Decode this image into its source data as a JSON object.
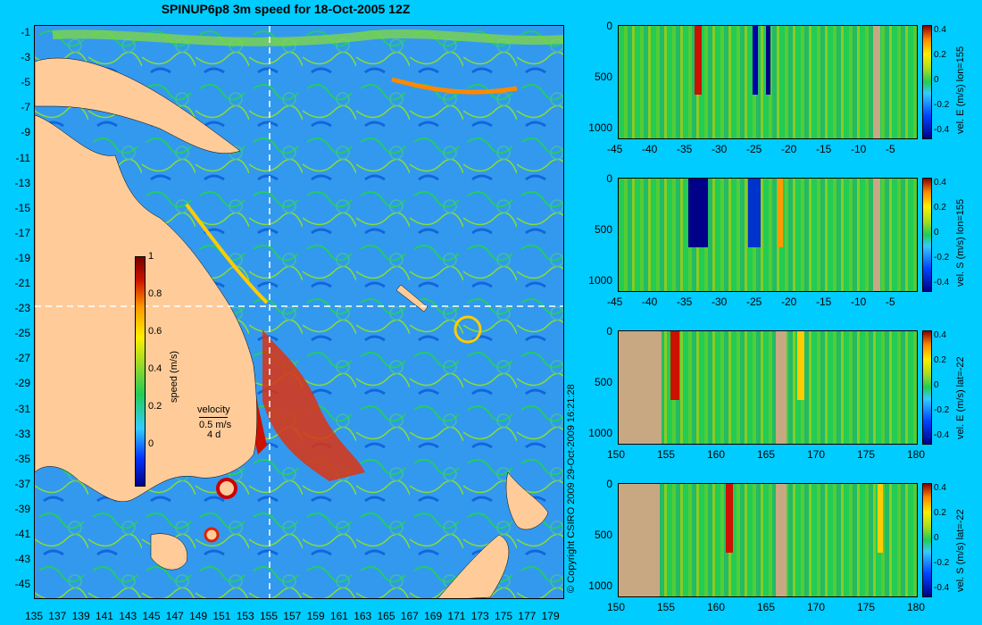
{
  "title": "SPINUP6p8 3m speed for 18-Oct-2005 12Z",
  "copyright": "© Copyright CSIRO 2009   29-Oct-2009 16:21:28",
  "map": {
    "lat_ticks": [
      "-1",
      "-3",
      "-5",
      "-7",
      "-9",
      "-11",
      "-13",
      "-15",
      "-17",
      "-19",
      "-21",
      "-23",
      "-25",
      "-27",
      "-29",
      "-31",
      "-33",
      "-35",
      "-37",
      "-39",
      "-41",
      "-43",
      "-45"
    ],
    "lon_ticks": [
      "135",
      "137",
      "139",
      "141",
      "143",
      "145",
      "147",
      "149",
      "151",
      "153",
      "155",
      "157",
      "159",
      "161",
      "163",
      "165",
      "167",
      "169",
      "171",
      "173",
      "175",
      "177",
      "179"
    ],
    "colorbar_label": "speed (m/s)",
    "colorbar_ticks": [
      "1",
      "0.8",
      "0.6",
      "0.4",
      "0.2",
      "0"
    ],
    "velocity_legend": {
      "title": "velocity",
      "speed": "0.5 m/s",
      "time": "4 d"
    },
    "land_color": "#ffcc99",
    "section_lon": 155,
    "section_lat": -22
  },
  "panels": [
    {
      "label": "vel. E (m/s) lon=155",
      "x_ticks": [
        "-45",
        "-40",
        "-35",
        "-30",
        "-25",
        "-20",
        "-15",
        "-10",
        "-5"
      ],
      "y_ticks": [
        "0",
        "500",
        "1000"
      ],
      "cb_ticks": [
        "0.4",
        "0.2",
        "0",
        "-0.2",
        "-0.4"
      ]
    },
    {
      "label": "vel. S (m/s) lon=155",
      "x_ticks": [
        "-45",
        "-40",
        "-35",
        "-30",
        "-25",
        "-20",
        "-15",
        "-10",
        "-5"
      ],
      "y_ticks": [
        "0",
        "500",
        "1000"
      ],
      "cb_ticks": [
        "0.4",
        "0.2",
        "0",
        "-0.2",
        "-0.4"
      ]
    },
    {
      "label": "vel. E (m/s) lat=-22",
      "x_ticks": [
        "150",
        "155",
        "160",
        "165",
        "170",
        "175",
        "180"
      ],
      "y_ticks": [
        "0",
        "500",
        "1000"
      ],
      "cb_ticks": [
        "0.4",
        "0.2",
        "0",
        "-0.2",
        "-0.4"
      ]
    },
    {
      "label": "vel. S (m/s) lat=-22",
      "x_ticks": [
        "150",
        "155",
        "160",
        "165",
        "170",
        "175",
        "180"
      ],
      "y_ticks": [
        "0",
        "500",
        "1000"
      ],
      "cb_ticks": [
        "0.4",
        "0.2",
        "0",
        "-0.2",
        "-0.4"
      ]
    }
  ]
}
